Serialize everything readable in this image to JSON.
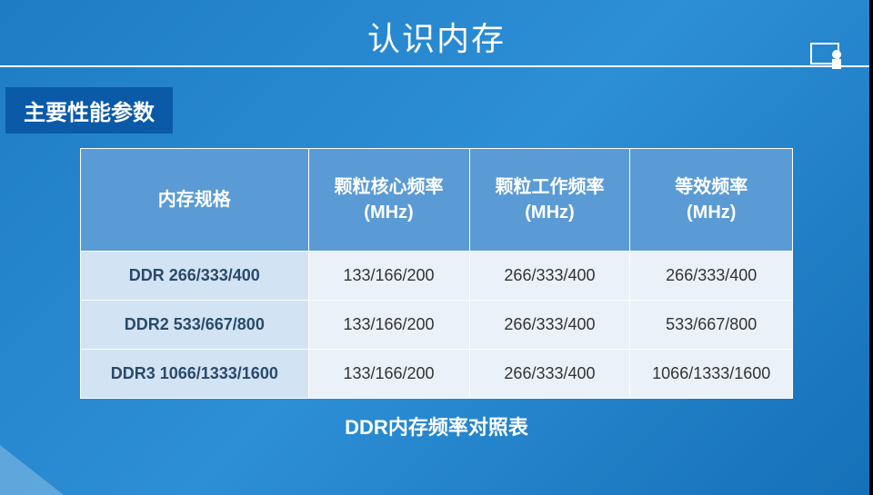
{
  "header": {
    "title": "认识内存"
  },
  "subtitle": "主要性能参数",
  "table": {
    "columns": [
      "内存规格",
      "颗粒核心频率\n(MHz)",
      "颗粒工作频率\n(MHz)",
      "等效频率\n(MHz)"
    ],
    "col_widths": [
      "32%",
      "22.6%",
      "22.6%",
      "22.8%"
    ],
    "header_bg": "#5b9bd5",
    "header_fg": "#ffffff",
    "cell_bg": "#eaf1f8",
    "spec_bg": "#d2e3f3",
    "border_color": "#ffffff",
    "rows": [
      [
        "DDR 266/333/400",
        "133/166/200",
        "266/333/400",
        "266/333/400"
      ],
      [
        "DDR2 533/667/800",
        "133/166/200",
        "266/333/400",
        "533/667/800"
      ],
      [
        "DDR3 1066/1333/1600",
        "133/166/200",
        "266/333/400",
        "1066/1333/1600"
      ]
    ]
  },
  "caption": "DDR内存频率对照表",
  "colors": {
    "page_bg_start": "#1e7cc4",
    "page_bg_end": "#1570b8",
    "subtitle_bg": "#0b5aa8",
    "text_white": "#ffffff"
  },
  "fonts": {
    "title_size_pt": 27,
    "subtitle_size_pt": 18,
    "th_size_pt": 15,
    "td_size_pt": 13,
    "caption_size_pt": 16
  }
}
